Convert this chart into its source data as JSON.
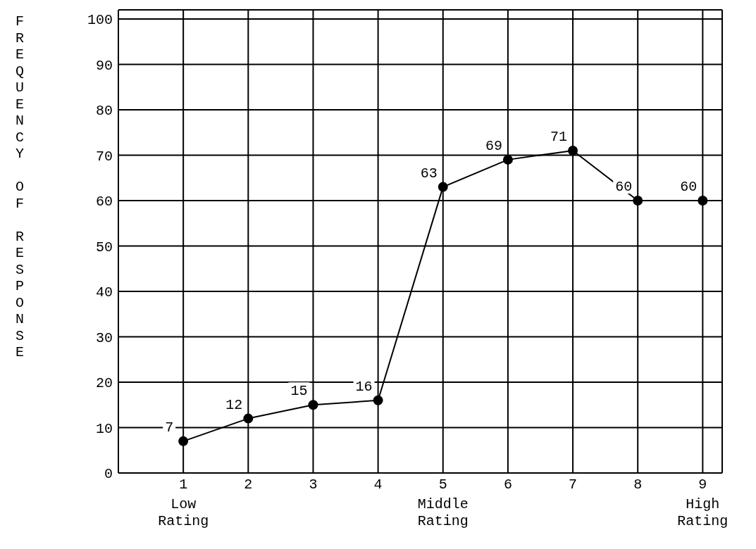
{
  "chart_data": {
    "type": "line",
    "ylabel": "FREQUENCY OF RESPONSE",
    "x": [
      1,
      2,
      3,
      4,
      5,
      6,
      7,
      8,
      9
    ],
    "series": [
      {
        "color": "#000000",
        "values": [
          7,
          12,
          15,
          16,
          63,
          69,
          71,
          60,
          60
        ]
      }
    ],
    "data_labels": true,
    "xlim": [
      0,
      9.3
    ],
    "xticks": [
      1,
      2,
      3,
      4,
      5,
      6,
      7,
      8,
      9
    ],
    "ylim": [
      0,
      102
    ],
    "yticks": [
      0,
      10,
      20,
      30,
      40,
      50,
      60,
      70,
      80,
      90,
      100
    ],
    "grid": true,
    "marker": "circle",
    "line_style": "solid",
    "annotations": [
      "Low Rating",
      "Middle Rating",
      "High Rating"
    ]
  }
}
